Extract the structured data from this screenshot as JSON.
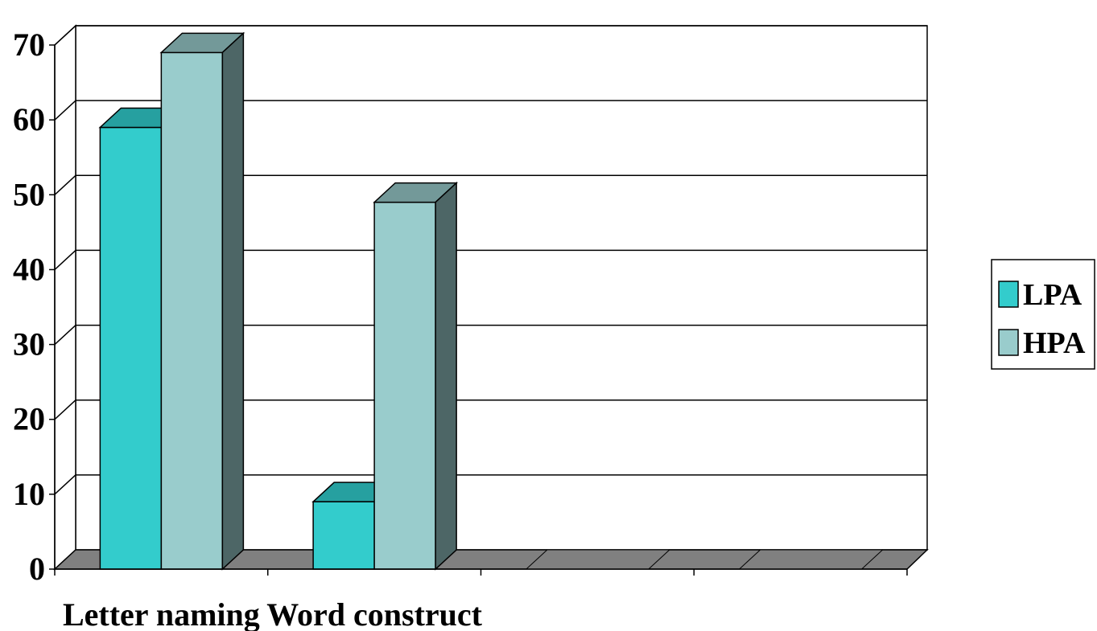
{
  "chart_data": {
    "type": "bar",
    "categories": [
      "Letter naming",
      "Word construct",
      "",
      ""
    ],
    "series": [
      {
        "name": "LPA",
        "values": [
          59,
          9,
          0,
          0
        ],
        "color": "#33CCCC",
        "top_color": "#26A0A0"
      },
      {
        "name": "HPA",
        "values": [
          69,
          49,
          0,
          0
        ],
        "color": "#99CCCC",
        "top_color": "#739999",
        "side_color": "#4D6666"
      }
    ],
    "yticks": [
      0,
      10,
      20,
      30,
      40,
      50,
      60,
      70
    ],
    "ylim": [
      0,
      70
    ],
    "title": "",
    "xlabel": "",
    "ylabel": "",
    "grid": true,
    "three_d": true,
    "legend_position": "right",
    "floor_color": "#808080"
  }
}
